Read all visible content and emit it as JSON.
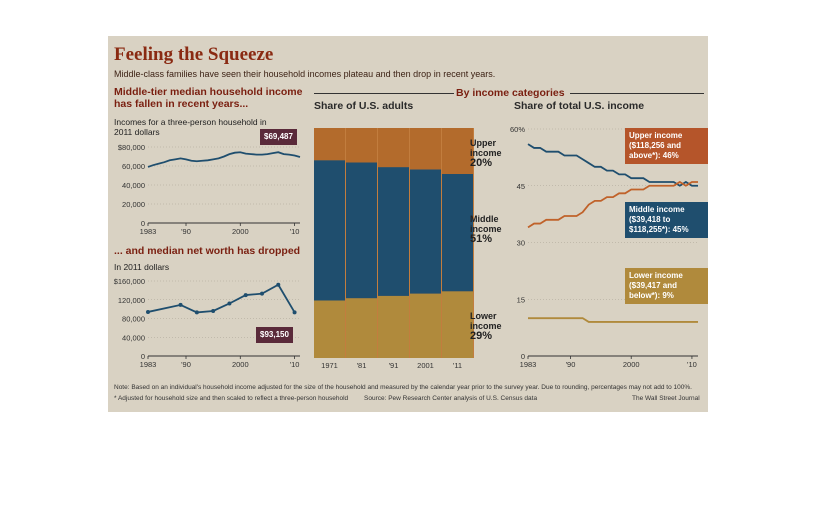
{
  "header": {
    "title": "Feeling the Squeeze",
    "subtitle": "Middle-class families have seen their household incomes plateau and then drop in recent years."
  },
  "by_income_label": "By income categories",
  "chart_data": [
    {
      "type": "line",
      "title": "Middle-tier median household income has fallen in recent years...",
      "ylabel": "Incomes for a three-person household in 2011 dollars",
      "x_tick_labels": [
        "1983",
        "'90",
        "2000",
        "'10"
      ],
      "y_tick_labels": [
        "0",
        "20,000",
        "40,000",
        "60,000",
        "$80,000"
      ],
      "ylim": [
        0,
        80000
      ],
      "xlim": [
        1983,
        2011
      ],
      "x": [
        1983,
        1984,
        1985,
        1986,
        1987,
        1988,
        1989,
        1990,
        1991,
        1992,
        1993,
        1994,
        1995,
        1996,
        1997,
        1998,
        1999,
        2000,
        2001,
        2002,
        2003,
        2004,
        2005,
        2006,
        2007,
        2008,
        2009,
        2010,
        2011
      ],
      "values": [
        59000,
        61000,
        62500,
        64000,
        66000,
        67000,
        68000,
        67000,
        65500,
        65000,
        65500,
        66000,
        67000,
        68000,
        70000,
        72500,
        74000,
        74500,
        73000,
        72500,
        72000,
        72000,
        72500,
        73500,
        74500,
        72500,
        72000,
        71000,
        69487
      ],
      "annotation": "$69,487"
    },
    {
      "type": "line",
      "title": "... and median net worth has dropped",
      "ylabel": "In 2011 dollars",
      "x_tick_labels": [
        "1983",
        "'90",
        "2000",
        "'10"
      ],
      "y_tick_labels": [
        "0",
        "40,000",
        "80,000",
        "120,000",
        "$160,000"
      ],
      "ylim": [
        0,
        160000
      ],
      "xlim": [
        1983,
        2011
      ],
      "x": [
        1983,
        1989,
        1992,
        1995,
        1998,
        2001,
        2004,
        2007,
        2010
      ],
      "values": [
        94000,
        109000,
        93000,
        96000,
        112000,
        130000,
        133000,
        152000,
        93150
      ],
      "annotation": "$93,150"
    },
    {
      "type": "bar",
      "stacked": true,
      "title": "Share of U.S. adults",
      "categories": [
        "1971",
        "'81",
        "'91",
        "2001",
        "'11"
      ],
      "series": [
        {
          "name": "Lower income",
          "color": "#b08a3c",
          "values": [
            25,
            26,
            27,
            28,
            29
          ]
        },
        {
          "name": "Middle income",
          "color": "#1f4e6e",
          "values": [
            61,
            59,
            56,
            54,
            51
          ]
        },
        {
          "name": "Upper income",
          "color": "#b36b2c",
          "values": [
            14,
            15,
            17,
            18,
            20
          ]
        }
      ],
      "labels": [
        {
          "name": "Upper income",
          "value": "20%"
        },
        {
          "name": "Middle income",
          "value": "51%"
        },
        {
          "name": "Lower income",
          "value": "29%"
        }
      ]
    },
    {
      "type": "line",
      "title": "Share of total U.S. income",
      "x_tick_labels": [
        "1983",
        "'90",
        "2000",
        "'10"
      ],
      "y_tick_labels": [
        "0",
        "15",
        "30",
        "45",
        "60%"
      ],
      "ylim": [
        0,
        60
      ],
      "xlim": [
        1983,
        2011
      ],
      "x": [
        1983,
        1984,
        1985,
        1986,
        1987,
        1988,
        1989,
        1990,
        1991,
        1992,
        1993,
        1994,
        1995,
        1996,
        1997,
        1998,
        1999,
        2000,
        2001,
        2002,
        2003,
        2004,
        2005,
        2006,
        2007,
        2008,
        2009,
        2010,
        2011
      ],
      "series": [
        {
          "name": "Middle",
          "color": "#1f4e6e",
          "values": [
            56,
            55,
            55,
            54,
            54,
            54,
            53,
            53,
            53,
            52,
            51,
            50,
            50,
            49,
            49,
            48,
            48,
            47,
            47,
            47,
            46,
            46,
            46,
            46,
            46,
            45,
            46,
            45,
            45
          ]
        },
        {
          "name": "Upper",
          "color": "#c0622a",
          "values": [
            34,
            35,
            35,
            36,
            36,
            36,
            37,
            37,
            37,
            38,
            40,
            41,
            41,
            42,
            42,
            43,
            43,
            44,
            44,
            44,
            45,
            45,
            45,
            45,
            45,
            46,
            45,
            46,
            46
          ]
        },
        {
          "name": "Lower",
          "color": "#b08a3c",
          "values": [
            10,
            10,
            10,
            10,
            10,
            10,
            10,
            10,
            10,
            10,
            9,
            9,
            9,
            9,
            9,
            9,
            9,
            9,
            9,
            9,
            9,
            9,
            9,
            9,
            9,
            9,
            9,
            9,
            9
          ]
        }
      ],
      "callouts": [
        {
          "name": "Upper",
          "lines": [
            "Upper income",
            "($118,256 and",
            "above*): 46%"
          ]
        },
        {
          "name": "Middle",
          "lines": [
            "Middle income",
            "($39,418 to",
            "$118,255*): 45%"
          ]
        },
        {
          "name": "Lower",
          "lines": [
            "Lower income",
            "($39,417 and",
            "below*): 9%"
          ]
        }
      ]
    }
  ],
  "footer": {
    "note": "Note: Based on an individual's household income adjusted for the size of the household and measured by the calendar year prior to the survey year. Due to rounding, percentages may not add to 100%.",
    "footnote": "* Adjusted for household size and then scaled to reflect a three-person household",
    "source": "Source: Pew Research Center analysis of U.S. Census data",
    "credit": "The Wall Street Journal"
  },
  "colors": {
    "background": "#d9d2c3",
    "title": "#8a2a12",
    "callout_upper": "#b5552a",
    "callout_middle": "#1f4e6e",
    "callout_lower": "#b08a3c",
    "dark_callout": "#5a2a3a"
  }
}
